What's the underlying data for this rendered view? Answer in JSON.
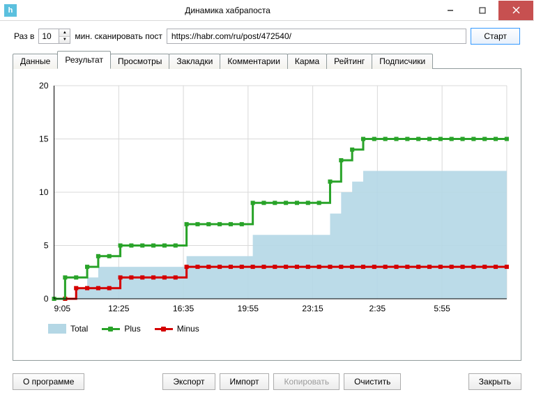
{
  "window": {
    "title": "Динамика хабрапоста",
    "icon_letter": "h",
    "icon_bg": "#5bc0de"
  },
  "toolbar": {
    "interval_label_prefix": "Раз в",
    "interval_value": "10",
    "interval_label_suffix": "мин. сканировать пост",
    "url": "https://habr.com/ru/post/472540/",
    "start_label": "Старт"
  },
  "tabs": [
    "Данные",
    "Результат",
    "Просмотры",
    "Закладки",
    "Комментарии",
    "Карма",
    "Рейтинг",
    "Подписчики"
  ],
  "active_tab": 1,
  "chart": {
    "type": "line-area-step",
    "background": "#ffffff",
    "grid_color": "#d9d9d9",
    "axis_color": "#000000",
    "label_color": "#000000",
    "label_fontsize": 12,
    "ylim": [
      0,
      20
    ],
    "ytick_step": 5,
    "x_labels": [
      "9:05",
      "12:25",
      "16:35",
      "19:55",
      "23:15",
      "2:35",
      "5:55"
    ],
    "x_count": 42,
    "series": {
      "total": {
        "label": "Total",
        "color": "#b4d7e5",
        "type": "area",
        "values": [
          0,
          0,
          1,
          2,
          3,
          3,
          3,
          3,
          3,
          3,
          3,
          3,
          4,
          4,
          4,
          4,
          4,
          4,
          6,
          6,
          6,
          6,
          6,
          6,
          6,
          8,
          10,
          11,
          12,
          12,
          12,
          12,
          12,
          12,
          12,
          12,
          12,
          12,
          12,
          12,
          12,
          12
        ]
      },
      "plus": {
        "label": "Plus",
        "color": "#29a329",
        "type": "line",
        "line_width": 3,
        "marker_size": 3,
        "values": [
          0,
          2,
          2,
          3,
          4,
          4,
          5,
          5,
          5,
          5,
          5,
          5,
          7,
          7,
          7,
          7,
          7,
          7,
          9,
          9,
          9,
          9,
          9,
          9,
          9,
          11,
          13,
          14,
          15,
          15,
          15,
          15,
          15,
          15,
          15,
          15,
          15,
          15,
          15,
          15,
          15,
          15
        ]
      },
      "minus": {
        "label": "Minus",
        "color": "#d40000",
        "type": "line",
        "line_width": 3,
        "marker_size": 3,
        "values": [
          0,
          0,
          1,
          1,
          1,
          1,
          2,
          2,
          2,
          2,
          2,
          2,
          3,
          3,
          3,
          3,
          3,
          3,
          3,
          3,
          3,
          3,
          3,
          3,
          3,
          3,
          3,
          3,
          3,
          3,
          3,
          3,
          3,
          3,
          3,
          3,
          3,
          3,
          3,
          3,
          3,
          3
        ]
      }
    },
    "legend_order": [
      "total",
      "plus",
      "minus"
    ]
  },
  "footer": {
    "about": "О программе",
    "export": "Экспорт",
    "import": "Импорт",
    "copy": "Копировать",
    "clear": "Очистить",
    "close": "Закрыть"
  }
}
